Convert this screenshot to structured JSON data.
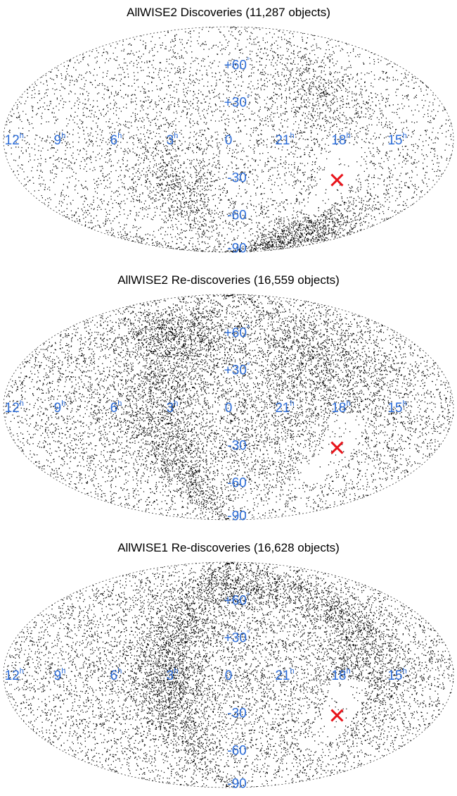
{
  "chart_data": [
    {
      "type": "scatter",
      "projection": "aitoff",
      "title": "AllWISE2 Discoveries (11,287 objects)",
      "ra_labels": [
        {
          "text": "12",
          "sup": "h",
          "ra_hours": 12
        },
        {
          "text": "9",
          "sup": "h",
          "ra_hours": 9
        },
        {
          "text": "6",
          "sup": "h",
          "ra_hours": 6
        },
        {
          "text": "3",
          "sup": "h",
          "ra_hours": 3
        },
        {
          "text": "0",
          "sup": "",
          "ra_hours": 0
        },
        {
          "text": "21",
          "sup": "h",
          "ra_hours": 21
        },
        {
          "text": "18",
          "sup": "h",
          "ra_hours": 18
        },
        {
          "text": "15",
          "sup": "h",
          "ra_hours": 15
        }
      ],
      "dec_labels": [
        {
          "text": "+60",
          "sup": "°",
          "dec": 60
        },
        {
          "text": "+30",
          "sup": "°",
          "dec": 30
        },
        {
          "text": "-30",
          "sup": "",
          "dec": -30
        },
        {
          "text": "-60",
          "sup": "",
          "dec": -60
        },
        {
          "text": "-90",
          "sup": "",
          "dec": -90
        }
      ],
      "marker": {
        "symbol": "×",
        "ra_hours": 17.6,
        "dec": -29,
        "color": "#e8141b"
      },
      "point_color": "#000000",
      "label_color": "#2b6cd8"
    },
    {
      "type": "scatter",
      "projection": "aitoff",
      "title": "AllWISE2 Re-discoveries (16,559 objects)",
      "ra_labels": [
        {
          "text": "12",
          "sup": "h",
          "ra_hours": 12
        },
        {
          "text": "9",
          "sup": "h",
          "ra_hours": 9
        },
        {
          "text": "6",
          "sup": "h",
          "ra_hours": 6
        },
        {
          "text": "3",
          "sup": "h",
          "ra_hours": 3
        },
        {
          "text": "0",
          "sup": "",
          "ra_hours": 0
        },
        {
          "text": "21",
          "sup": "h",
          "ra_hours": 21
        },
        {
          "text": "18",
          "sup": "h",
          "ra_hours": 18
        },
        {
          "text": "15",
          "sup": "h",
          "ra_hours": 15
        }
      ],
      "dec_labels": [
        {
          "text": "+60",
          "sup": "°",
          "dec": 60
        },
        {
          "text": "+30",
          "sup": "°",
          "dec": 30
        },
        {
          "text": "-30",
          "sup": "",
          "dec": -30
        },
        {
          "text": "-60",
          "sup": "",
          "dec": -60
        },
        {
          "text": "-90",
          "sup": "",
          "dec": -90
        }
      ],
      "marker": {
        "symbol": "×",
        "ra_hours": 17.6,
        "dec": -29,
        "color": "#e8141b"
      },
      "point_color": "#000000",
      "label_color": "#2b6cd8"
    },
    {
      "type": "scatter",
      "projection": "aitoff",
      "title": "AllWISE1 Re-discoveries (16,628 objects)",
      "ra_labels": [
        {
          "text": "12",
          "sup": "h",
          "ra_hours": 12
        },
        {
          "text": "9",
          "sup": "h",
          "ra_hours": 9
        },
        {
          "text": "6",
          "sup": "h",
          "ra_hours": 6
        },
        {
          "text": "3",
          "sup": "h",
          "ra_hours": 3
        },
        {
          "text": "0",
          "sup": "",
          "ra_hours": 0
        },
        {
          "text": "21",
          "sup": "h",
          "ra_hours": 21
        },
        {
          "text": "18",
          "sup": "h",
          "ra_hours": 18
        },
        {
          "text": "15",
          "sup": "h",
          "ra_hours": 15
        }
      ],
      "dec_labels": [
        {
          "text": "+60",
          "sup": "°",
          "dec": 60
        },
        {
          "text": "+30",
          "sup": "°",
          "dec": 30
        },
        {
          "text": "-30",
          "sup": "",
          "dec": -30
        },
        {
          "text": "-60",
          "sup": "",
          "dec": -60
        },
        {
          "text": "-90",
          "sup": "",
          "dec": -90
        }
      ],
      "marker": {
        "symbol": "×",
        "ra_hours": 17.6,
        "dec": -29,
        "color": "#e8141b"
      },
      "point_color": "#000000",
      "label_color": "#2b6cd8"
    }
  ]
}
